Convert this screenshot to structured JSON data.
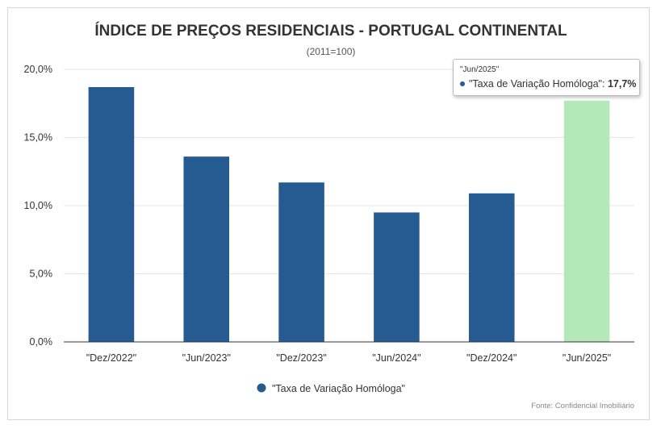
{
  "chart_data": {
    "type": "bar",
    "title": "ÍNDICE DE PREÇOS RESIDENCIAIS - PORTUGAL CONTINENTAL",
    "subtitle": "(2011=100)",
    "categories": [
      "\"Dez/2022\"",
      "\"Jun/2023\"",
      "\"Dez/2023\"",
      "\"Jun/2024\"",
      "\"Dez/2024\"",
      "\"Jun/2025\""
    ],
    "series": [
      {
        "name": "\"Taxa de Variação Homóloga\"",
        "values": [
          18.7,
          13.6,
          11.7,
          9.5,
          10.9,
          17.7
        ]
      }
    ],
    "y_ticks": [
      "0,0%",
      "5,0%",
      "10,0%",
      "15,0%",
      "20,0%"
    ],
    "ylim": [
      0,
      20
    ],
    "xlabel": "",
    "ylabel": "",
    "grid": true,
    "legend_position": "bottom",
    "highlighted_index": 5,
    "credit": "Fonte: Confidencial Imobiliário"
  },
  "tooltip": {
    "category": "\"Jun/2025\"",
    "series_label": "\"Taxa de Variação Homóloga\": ",
    "value": "17,7%"
  },
  "colors": {
    "bar": "#255b91",
    "highlight": "#b5e8b8",
    "grid": "#e6e6e6",
    "axis": "#333333"
  }
}
